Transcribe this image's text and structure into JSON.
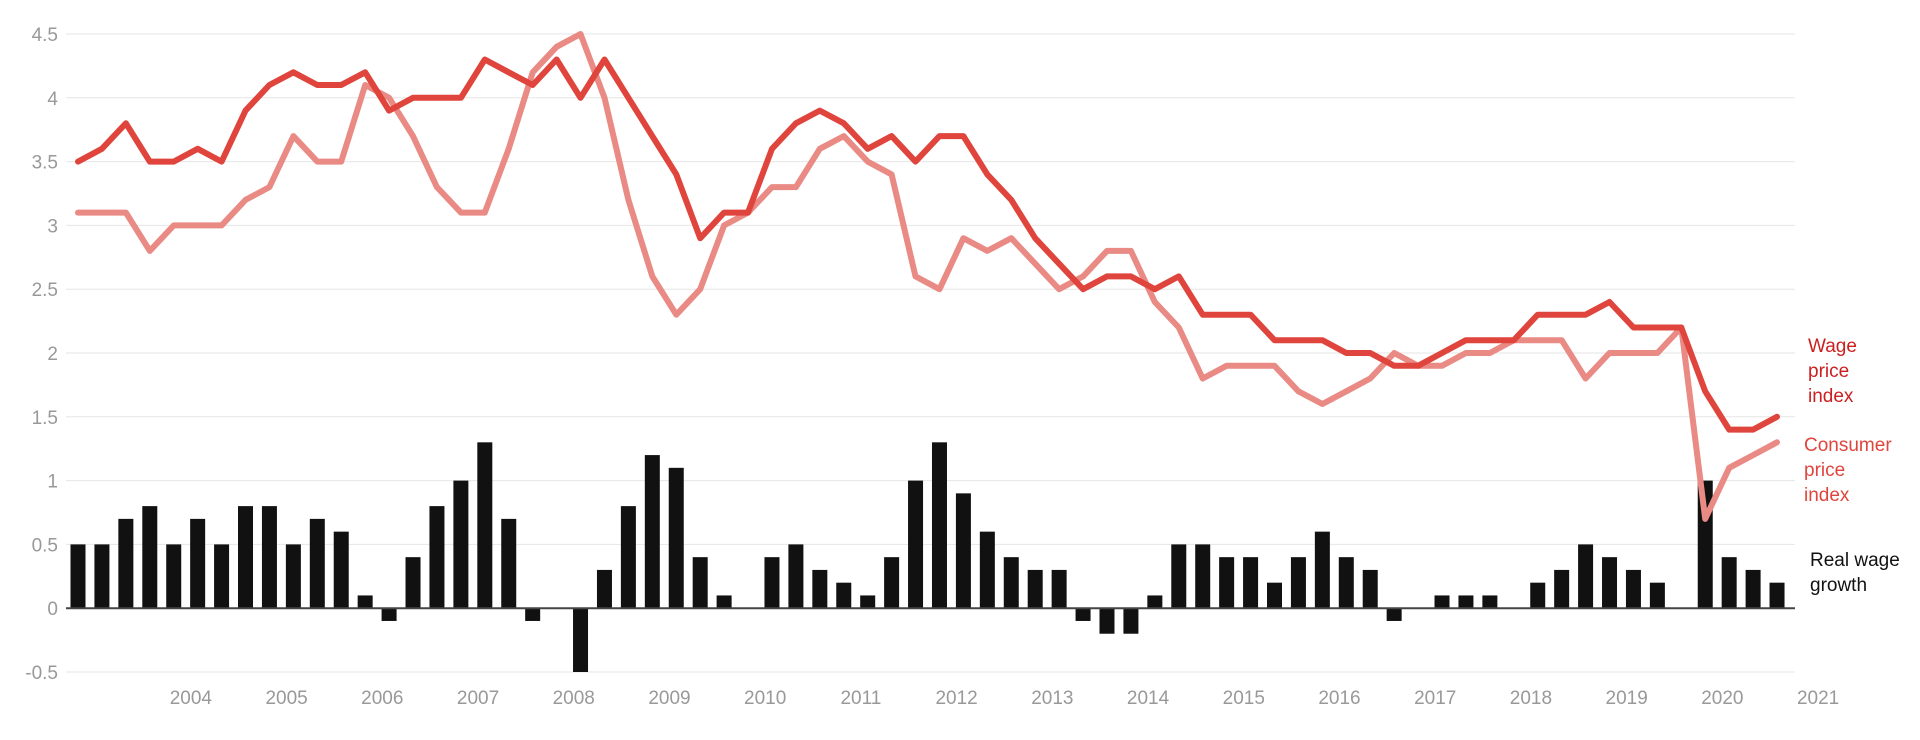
{
  "chart_data": {
    "type": "bar",
    "title": "",
    "xlabel": "",
    "ylabel": "",
    "ylim": [
      -0.5,
      4.5
    ],
    "y_ticks": [
      "4.5",
      "4",
      "3.5",
      "3",
      "2.5",
      "2",
      "1.5",
      "1",
      "0.5",
      "0",
      "-0.5"
    ],
    "x_tick_labels": [
      "2004",
      "2005",
      "2006",
      "2007",
      "2008",
      "2009",
      "2010",
      "2011",
      "2012",
      "2013",
      "2014",
      "2015",
      "2016",
      "2017",
      "2018",
      "2019",
      "2020",
      "2021"
    ],
    "grid": true,
    "legend_placement": "right",
    "quarters": [
      "2003-Q3",
      "2003-Q4",
      "2004-Q1",
      "2004-Q2",
      "2004-Q3",
      "2004-Q4",
      "2005-Q1",
      "2005-Q2",
      "2005-Q3",
      "2005-Q4",
      "2006-Q1",
      "2006-Q2",
      "2006-Q3",
      "2006-Q4",
      "2007-Q1",
      "2007-Q2",
      "2007-Q3",
      "2007-Q4",
      "2008-Q1",
      "2008-Q2",
      "2008-Q3",
      "2008-Q4",
      "2009-Q1",
      "2009-Q2",
      "2009-Q3",
      "2009-Q4",
      "2010-Q1",
      "2010-Q2",
      "2010-Q3",
      "2010-Q4",
      "2011-Q1",
      "2011-Q2",
      "2011-Q3",
      "2011-Q4",
      "2012-Q1",
      "2012-Q2",
      "2012-Q3",
      "2012-Q4",
      "2013-Q1",
      "2013-Q2",
      "2013-Q3",
      "2013-Q4",
      "2014-Q1",
      "2014-Q2",
      "2014-Q3",
      "2014-Q4",
      "2015-Q1",
      "2015-Q2",
      "2015-Q3",
      "2015-Q4",
      "2016-Q1",
      "2016-Q2",
      "2016-Q3",
      "2016-Q4",
      "2017-Q1",
      "2017-Q2",
      "2017-Q3",
      "2017-Q4",
      "2018-Q1",
      "2018-Q2",
      "2018-Q3",
      "2018-Q4",
      "2019-Q1",
      "2019-Q2",
      "2019-Q3",
      "2019-Q4",
      "2020-Q1",
      "2020-Q2",
      "2020-Q3",
      "2020-Q4",
      "2021-Q1",
      "2021-Q2"
    ],
    "series": [
      {
        "name": "Wage price index",
        "type": "line",
        "color": "#e0453d",
        "values": [
          3.5,
          3.6,
          3.8,
          3.5,
          3.5,
          3.6,
          3.5,
          3.9,
          4.1,
          4.2,
          4.1,
          4.1,
          4.2,
          3.9,
          4.0,
          4.0,
          4.0,
          4.3,
          4.2,
          4.1,
          4.3,
          4.0,
          4.3,
          4.0,
          3.7,
          3.4,
          2.9,
          3.1,
          3.1,
          3.6,
          3.8,
          3.9,
          3.8,
          3.6,
          3.7,
          3.5,
          3.7,
          3.7,
          3.4,
          3.2,
          2.9,
          2.7,
          2.5,
          2.6,
          2.6,
          2.5,
          2.6,
          2.3,
          2.3,
          2.3,
          2.1,
          2.1,
          2.1,
          2.0,
          2.0,
          1.9,
          1.9,
          2.0,
          2.1,
          2.1,
          2.1,
          2.3,
          2.3,
          2.3,
          2.4,
          2.2,
          2.2,
          2.2,
          1.7,
          1.4,
          1.4,
          1.5
        ]
      },
      {
        "name": "Consumer price index",
        "type": "line",
        "color": "#e98a84",
        "values": [
          3.1,
          3.1,
          3.1,
          2.8,
          3.0,
          3.0,
          3.0,
          3.2,
          3.3,
          3.7,
          3.5,
          3.5,
          4.1,
          4.0,
          3.7,
          3.3,
          3.1,
          3.1,
          3.6,
          4.2,
          4.4,
          4.5,
          4.0,
          3.2,
          2.6,
          2.3,
          2.5,
          3.0,
          3.1,
          3.3,
          3.3,
          3.6,
          3.7,
          3.5,
          3.4,
          2.6,
          2.5,
          2.9,
          2.8,
          2.9,
          2.7,
          2.5,
          2.6,
          2.8,
          2.8,
          2.4,
          2.2,
          1.8,
          1.9,
          1.9,
          1.9,
          1.7,
          1.6,
          1.7,
          1.8,
          2.0,
          1.9,
          1.9,
          2.0,
          2.0,
          2.1,
          2.1,
          2.1,
          1.8,
          2.0,
          2.0,
          2.0,
          2.2,
          0.7,
          1.1,
          1.2,
          1.3
        ]
      },
      {
        "name": "Real wage growth",
        "type": "bar",
        "color": "#111111",
        "values": [
          0.5,
          0.5,
          0.7,
          0.8,
          0.5,
          0.7,
          0.5,
          0.8,
          0.8,
          0.5,
          0.7,
          0.6,
          0.1,
          -0.1,
          0.4,
          0.8,
          1.0,
          1.3,
          0.7,
          -0.1,
          null,
          -0.5,
          0.3,
          0.8,
          1.2,
          1.1,
          0.4,
          0.1,
          null,
          0.4,
          0.5,
          0.3,
          0.2,
          0.1,
          0.4,
          1.0,
          1.3,
          0.9,
          0.6,
          0.4,
          0.3,
          0.3,
          -0.1,
          -0.2,
          -0.2,
          0.1,
          0.5,
          0.5,
          0.4,
          0.4,
          0.2,
          0.4,
          0.6,
          0.4,
          0.3,
          -0.1,
          null,
          0.1,
          0.1,
          0.1,
          null,
          0.2,
          0.3,
          0.5,
          0.4,
          0.3,
          0.2,
          null,
          1.0,
          0.4,
          0.3,
          0.2
        ]
      }
    ],
    "legend": [
      {
        "label": [
          "Wage",
          "price",
          "index"
        ],
        "color": "#cc1f1f"
      },
      {
        "label": [
          "Consumer",
          "price",
          "index"
        ],
        "color": "#e0453d"
      },
      {
        "label": [
          "Real wage",
          "growth"
        ],
        "color": "#111111"
      }
    ]
  }
}
